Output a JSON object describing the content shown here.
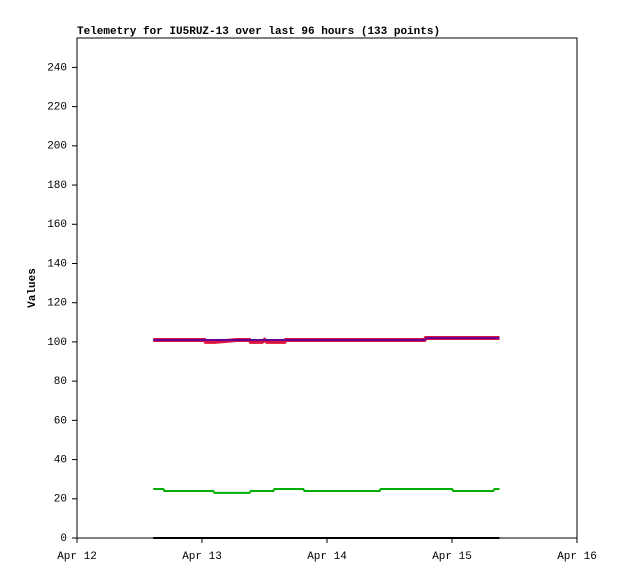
{
  "chart_data": {
    "type": "line",
    "title": "Telemetry for IU5RUZ-13 over last 96 hours (133 points)",
    "ylabel": "Values",
    "xlim": [
      12,
      16
    ],
    "xticks": [
      {
        "value": 12,
        "label": "Apr 12"
      },
      {
        "value": 13,
        "label": "Apr 13"
      },
      {
        "value": 14,
        "label": "Apr 14"
      },
      {
        "value": 15,
        "label": "Apr 15"
      },
      {
        "value": 16,
        "label": "Apr 16"
      }
    ],
    "ylim": [
      0,
      255
    ],
    "yticks": [
      0,
      20,
      40,
      60,
      80,
      100,
      120,
      140,
      160,
      180,
      200,
      220,
      240
    ],
    "series": [
      {
        "color": "#000000",
        "width": 2,
        "x": [
          12.61,
          15.38
        ],
        "values": [
          0,
          0
        ]
      },
      {
        "color": "#00b000",
        "width": 2,
        "x": [
          12.61,
          12.69,
          12.7,
          13.09,
          13.1,
          13.38,
          13.39,
          13.57,
          13.58,
          13.81,
          13.82,
          14.42,
          14.43,
          15.0,
          15.01,
          15.33,
          15.34,
          15.38
        ],
        "values": [
          25,
          25,
          24,
          24,
          23,
          23,
          24,
          24,
          25,
          25,
          24,
          24,
          25,
          25,
          24,
          24,
          25,
          25
        ]
      },
      {
        "color": "#dc143c",
        "width": 4,
        "x": [
          12.61,
          13.02,
          13.03,
          13.1,
          13.28,
          13.38,
          13.39,
          13.48,
          13.5,
          13.52,
          13.66,
          13.67,
          13.84,
          14.78,
          14.79,
          15.22,
          15.38
        ],
        "values": [
          101,
          101,
          100,
          100,
          101,
          101,
          100,
          100,
          101,
          100,
          100,
          101,
          101,
          101,
          102,
          102,
          102
        ]
      },
      {
        "color": "#660099",
        "width": 2,
        "x": [
          12.61,
          14.78,
          14.8,
          15.38
        ],
        "values": [
          101,
          101,
          102,
          102
        ]
      }
    ]
  }
}
